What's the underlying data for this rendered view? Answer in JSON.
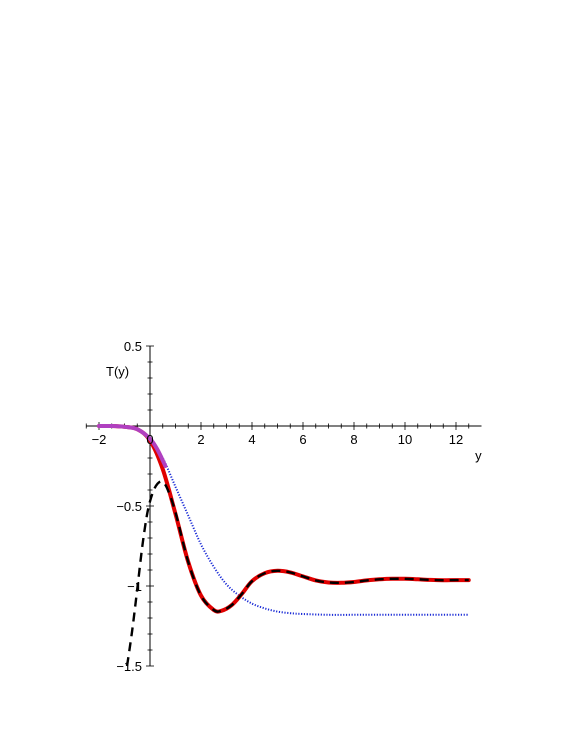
{
  "chart_data": {
    "type": "line",
    "title": "",
    "xlabel": "y",
    "ylabel": "T(y)",
    "xlim": [
      -2.5,
      13
    ],
    "ylim": [
      -1.5,
      0.5
    ],
    "grid": false,
    "legend": "none",
    "xticks": [
      -2,
      0,
      2,
      4,
      6,
      8,
      10,
      12
    ],
    "xtick_labels": [
      "−2",
      "0",
      "2",
      "4",
      "6",
      "8",
      "10",
      "12"
    ],
    "yticks": [
      0.5,
      -0.5,
      -1,
      -1.5
    ],
    "ytick_labels": [
      "0.5",
      "−0.5",
      "−1",
      "−1.5"
    ],
    "series": [
      {
        "color": "#1a2bd6",
        "style": "dotted",
        "x": [
          -2,
          -1.5,
          -1,
          -0.5,
          0,
          0.5,
          1,
          1.5,
          2,
          2.5,
          3,
          3.5,
          4,
          4.5,
          5,
          5.5,
          6,
          7,
          8,
          9,
          10,
          11,
          12.5
        ],
        "y": [
          0,
          0,
          -0.005,
          -0.02,
          -0.08,
          -0.2,
          -0.38,
          -0.56,
          -0.74,
          -0.88,
          -0.99,
          -1.06,
          -1.11,
          -1.14,
          -1.16,
          -1.17,
          -1.175,
          -1.18,
          -1.18,
          -1.18,
          -1.18,
          -1.18,
          -1.18
        ]
      },
      {
        "color": "#e00000",
        "style": "solid",
        "x": [
          -2,
          -1.5,
          -1,
          -0.5,
          0,
          0.5,
          1,
          1.5,
          2,
          2.5,
          2.8,
          3.2,
          3.6,
          4,
          4.5,
          5,
          5.5,
          6,
          6.5,
          7,
          7.5,
          8,
          8.5,
          9,
          9.5,
          10,
          10.5,
          11,
          11.5,
          12,
          12.5
        ],
        "y": [
          0,
          0,
          -0.005,
          -0.02,
          -0.09,
          -0.27,
          -0.55,
          -0.85,
          -1.06,
          -1.15,
          -1.155,
          -1.12,
          -1.05,
          -0.97,
          -0.92,
          -0.905,
          -0.915,
          -0.94,
          -0.965,
          -0.978,
          -0.98,
          -0.975,
          -0.965,
          -0.958,
          -0.955,
          -0.955,
          -0.958,
          -0.962,
          -0.964,
          -0.963,
          -0.963
        ]
      },
      {
        "color": "#000000",
        "style": "dashed",
        "x": [
          -0.9,
          -0.7,
          -0.5,
          -0.3,
          -0.1,
          0.1,
          0.3,
          0.5,
          0.7,
          1,
          1.5,
          2,
          2.5,
          2.8,
          3.2,
          3.6,
          4,
          4.5,
          5,
          5.5,
          6,
          6.5,
          7,
          7.5,
          8,
          8.5,
          9,
          9.5,
          10,
          10.5,
          11,
          11.5,
          12,
          12.5
        ],
        "y": [
          -1.5,
          -1.28,
          -1.02,
          -0.75,
          -0.54,
          -0.42,
          -0.36,
          -0.35,
          -0.4,
          -0.54,
          -0.85,
          -1.06,
          -1.15,
          -1.155,
          -1.12,
          -1.05,
          -0.97,
          -0.92,
          -0.905,
          -0.915,
          -0.94,
          -0.965,
          -0.978,
          -0.98,
          -0.975,
          -0.965,
          -0.958,
          -0.955,
          -0.955,
          -0.958,
          -0.962,
          -0.964,
          -0.963,
          -0.963
        ]
      },
      {
        "color": "#b040c0",
        "style": "solid",
        "x": [
          -2,
          -1.5,
          -1,
          -0.5,
          0,
          0.3,
          0.6
        ],
        "y": [
          0,
          0,
          -0.005,
          -0.02,
          -0.08,
          -0.15,
          -0.25
        ]
      }
    ]
  }
}
